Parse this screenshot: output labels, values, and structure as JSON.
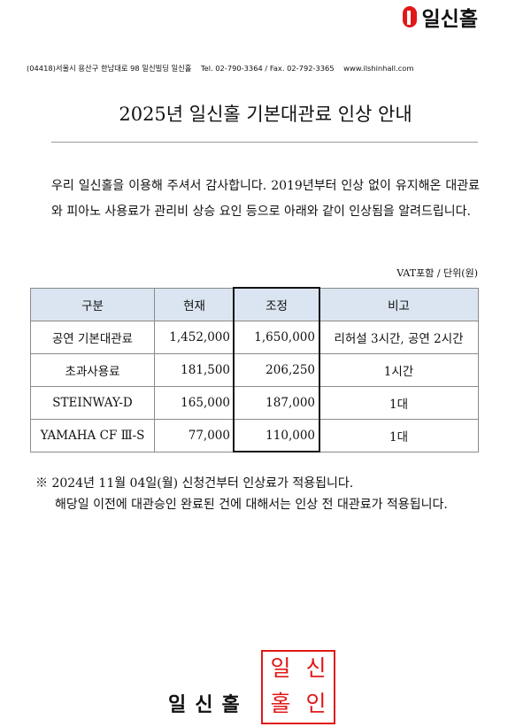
{
  "header": {
    "logo_text": "일신홀",
    "address": "(04418)서울시 용산구 한남대로 98 일신빌딩 일신홀    Tel. 02-790-3364 / Fax. 02-792-3365    www.ilshinhall.com"
  },
  "title": "2025년 일신홀 기본대관료 인상 안내",
  "intro": "우리 일신홀을 이용해 주셔서 감사합니다. 2019년부터 인상 없이 유지해온 대관료와 피아노 사용료가 관리비 상승 요인 등으로 아래와 같이 인상됨을 알려드립니다.",
  "unit_note": "VAT포함 / 단위(원)",
  "table": {
    "headers": [
      "구분",
      "현재",
      "조정",
      "비고"
    ],
    "rows": [
      [
        "공연 기본대관료",
        "1,452,000",
        "1,650,000",
        "리허설 3시간, 공연 2시간"
      ],
      [
        "초과사용료",
        "181,500",
        "206,250",
        "1시간"
      ],
      [
        "STEINWAY-D",
        "165,000",
        "187,000",
        "1대"
      ],
      [
        "YAMAHA CF Ⅲ-S",
        "77,000",
        "110,000",
        "1대"
      ]
    ]
  },
  "notes": [
    "※ 2024년 11월 04일(월) 신청건부터 인상료가 적용됩니다.",
    "해당일 이전에 대관승인 완료된 건에 대해서는 인상 전 대관료가 적용됩니다."
  ],
  "signature": "일신홀",
  "stamp": [
    "일",
    "신",
    "홀",
    "인"
  ],
  "colors": {
    "brand": "#e01818",
    "header_fill": "#dbe5f1"
  }
}
